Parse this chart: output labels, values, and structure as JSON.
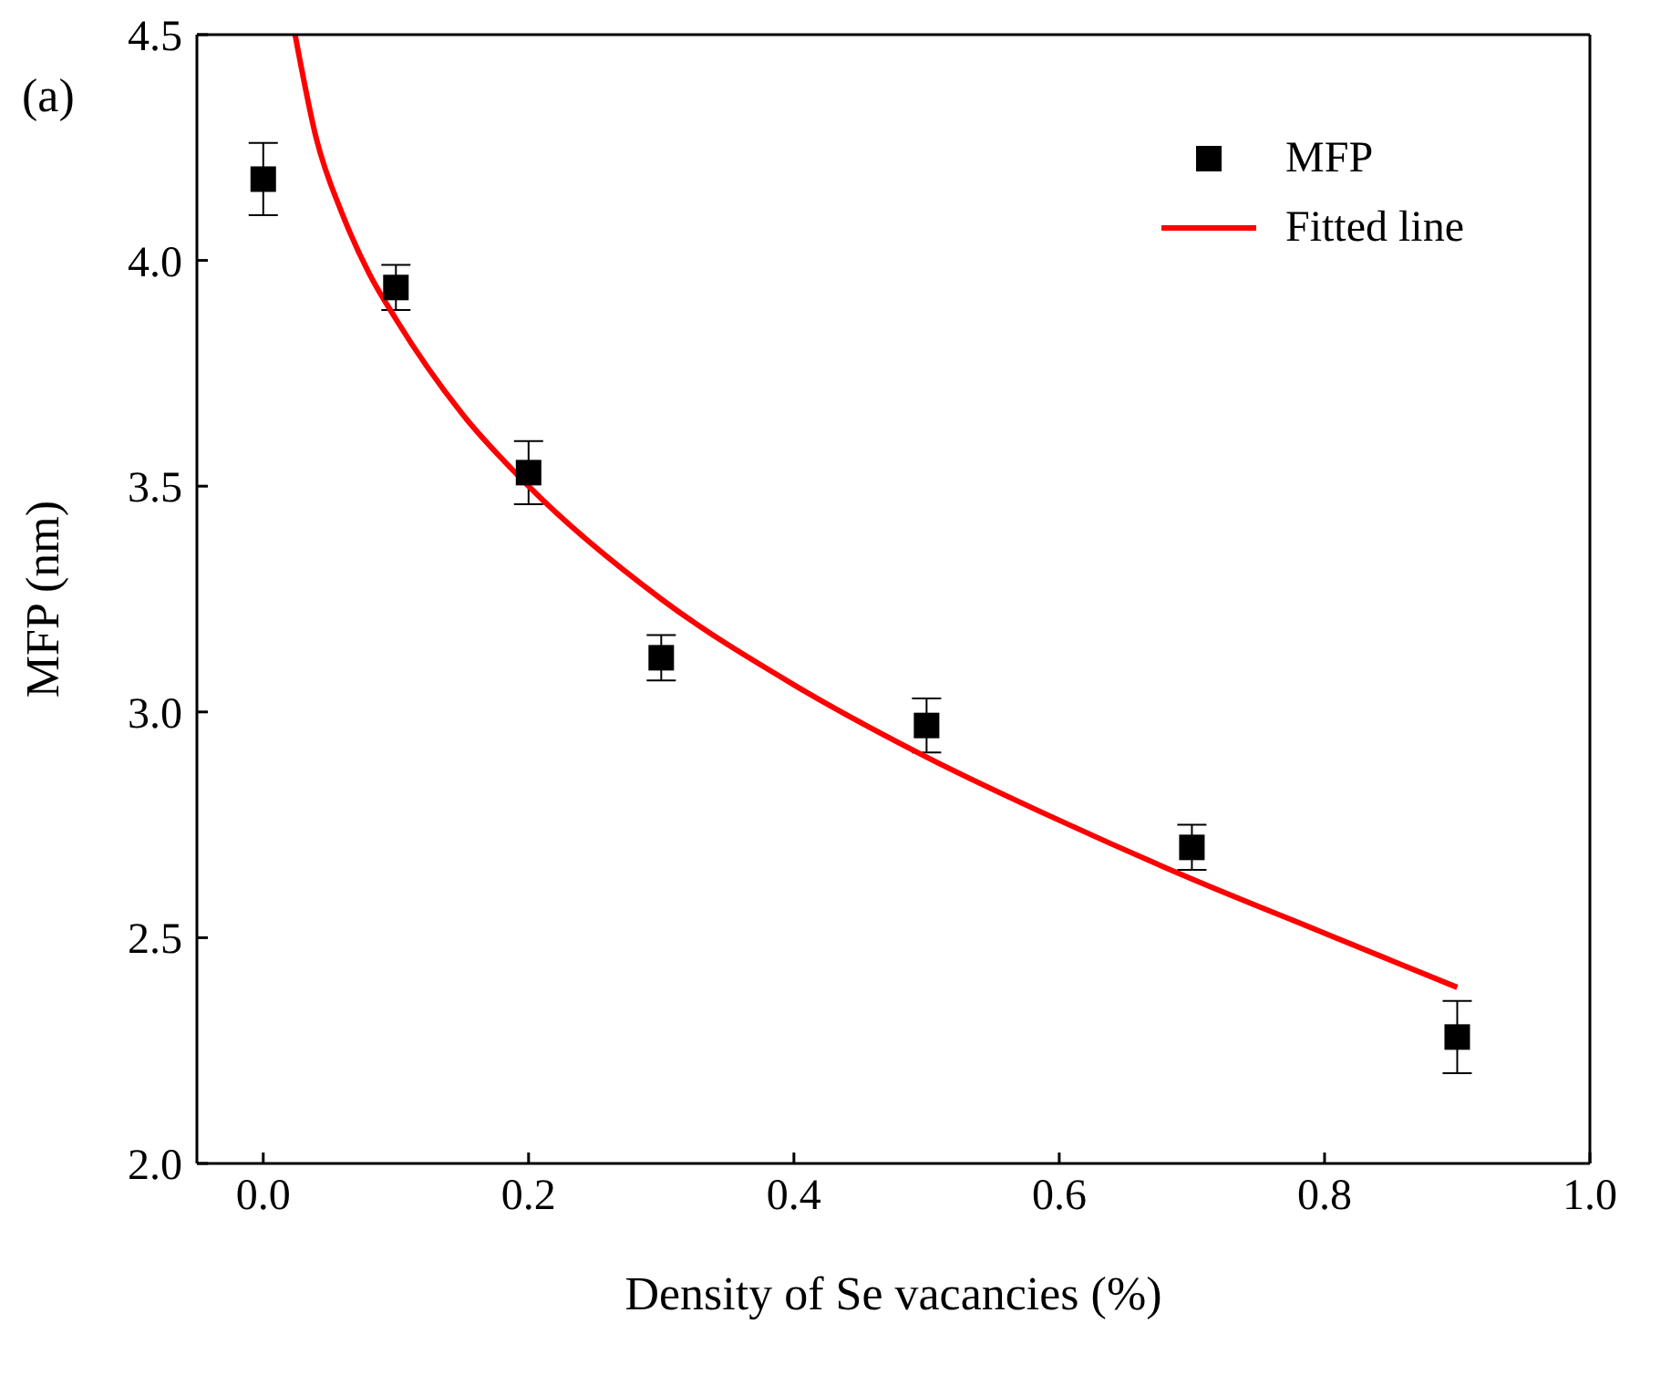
{
  "chart_data": {
    "type": "scatter",
    "xlabel": "Density of Se vacancies (%)",
    "ylabel": "MFP (nm)",
    "annotations": [
      "(a)"
    ],
    "xlim": [
      -0.05,
      1.0
    ],
    "xticks": [
      {
        "value": 0,
        "label": "0.0"
      },
      0.2,
      0.4,
      0.6,
      0.8,
      {
        "value": 1,
        "label": "1.0"
      }
    ],
    "ylim": [
      2.0,
      4.5
    ],
    "yticks": [
      {
        "value": 2,
        "label": "2.0"
      },
      2.5,
      {
        "value": 3,
        "label": "3.0"
      },
      3.5,
      {
        "value": 4,
        "label": "4.0"
      },
      4.5
    ],
    "legend": "top right",
    "series": [
      {
        "name": "MFP",
        "marker": "square",
        "color": "#000000",
        "x": [
          0,
          0.1,
          0.2,
          0.3,
          0.5,
          0.7,
          0.9
        ],
        "values": [
          4.18,
          3.94,
          3.53,
          3.12,
          2.97,
          2.7,
          2.28
        ],
        "errors": [
          0.08,
          0.05,
          0.07,
          0.05,
          0.06,
          0.05,
          0.08
        ]
      },
      {
        "name": "Fitted line",
        "type": "line",
        "marker": "none",
        "color": "#ff0000",
        "x": [
          0.024,
          0.04,
          0.06,
          0.08,
          0.1,
          0.15,
          0.2,
          0.3,
          0.4,
          0.5,
          0.6,
          0.7,
          0.8,
          0.9
        ],
        "values": [
          4.5,
          4.27,
          4.1,
          3.97,
          3.87,
          3.66,
          3.5,
          3.25,
          3.06,
          2.9,
          2.76,
          2.63,
          2.51,
          2.39
        ]
      }
    ]
  }
}
